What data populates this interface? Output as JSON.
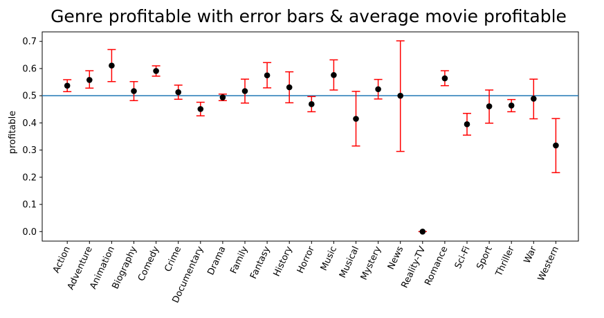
{
  "chart_data": {
    "type": "scatter",
    "title": "Genre profitable with error bars & average movie profitable",
    "xlabel": "",
    "ylabel": "profitable",
    "ylim": [
      -0.035,
      0.735
    ],
    "yticks": [
      "0.0",
      "0.1",
      "0.2",
      "0.3",
      "0.4",
      "0.5",
      "0.6",
      "0.7"
    ],
    "grid": false,
    "reference_line": {
      "y": 0.5,
      "color": "#1f77b4"
    },
    "marker_color": "#000000",
    "errorbar_color": "#ff0000",
    "categories": [
      "Action",
      "Adventure",
      "Animation",
      "Biography",
      "Comedy",
      "Crime",
      "Documentary",
      "Drama",
      "Family",
      "Fantasy",
      "History",
      "Horror",
      "Music",
      "Musical",
      "Mystery",
      "News",
      "Reality-TV",
      "Romance",
      "Sci-Fi",
      "Sport",
      "Thriller",
      "War",
      "Western"
    ],
    "values": [
      0.537,
      0.558,
      0.611,
      0.517,
      0.591,
      0.513,
      0.451,
      0.494,
      0.517,
      0.575,
      0.531,
      0.469,
      0.576,
      0.415,
      0.524,
      0.5,
      0.0,
      0.564,
      0.395,
      0.461,
      0.464,
      0.489,
      0.317
    ],
    "error_low": [
      0.515,
      0.528,
      0.552,
      0.482,
      0.572,
      0.487,
      0.426,
      0.482,
      0.473,
      0.529,
      0.474,
      0.441,
      0.521,
      0.315,
      0.488,
      0.295,
      0.0,
      0.537,
      0.355,
      0.399,
      0.441,
      0.415,
      0.217
    ],
    "error_high": [
      0.559,
      0.592,
      0.67,
      0.552,
      0.61,
      0.539,
      0.476,
      0.506,
      0.561,
      0.622,
      0.588,
      0.497,
      0.632,
      0.516,
      0.56,
      0.702,
      0.0,
      0.592,
      0.435,
      0.521,
      0.486,
      0.561,
      0.416
    ]
  }
}
